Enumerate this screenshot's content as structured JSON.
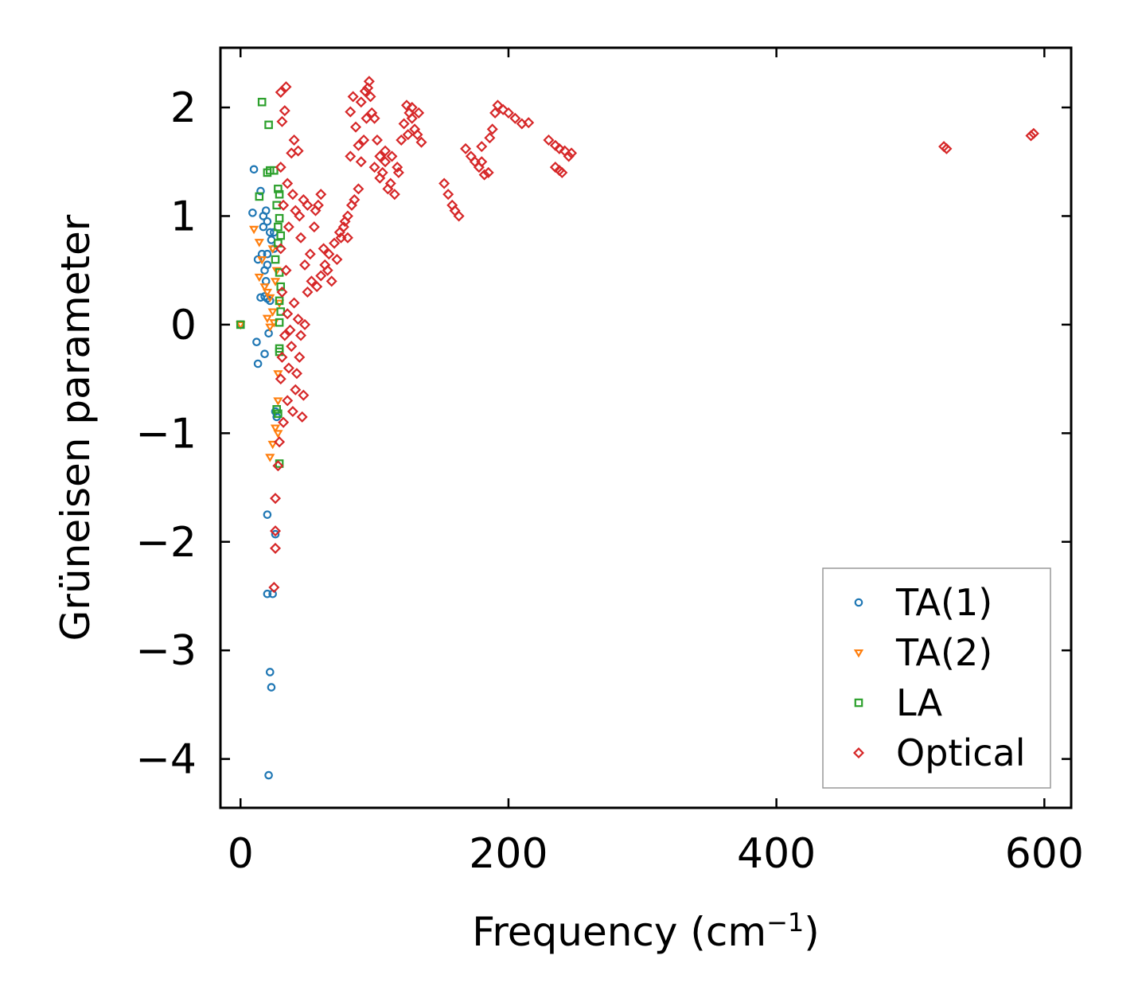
{
  "chart_data": {
    "type": "scatter",
    "xlabel": "Frequency (cm",
    "xlabel_sup": "−1",
    "xlabel_end": ")",
    "ylabel": "Grüneisen parameter",
    "xlim": [
      -15,
      620
    ],
    "ylim": [
      -4.45,
      2.55
    ],
    "xticks": [
      0,
      200,
      400,
      600
    ],
    "xtick_labels": [
      "0",
      "200",
      "400",
      "600"
    ],
    "yticks": [
      2,
      1,
      0,
      -1,
      -2,
      -3,
      -4
    ],
    "ytick_labels": [
      "2",
      "1",
      "0",
      "−1",
      "−2",
      "−3",
      "−4"
    ],
    "legend_position": "lower-right",
    "series": [
      {
        "name": "TA(1)",
        "marker": "circle",
        "color": "#1f77b4",
        "points": [
          [
            0,
            0
          ],
          [
            10,
            1.43
          ],
          [
            9,
            1.03
          ],
          [
            15,
            1.23
          ],
          [
            13,
            0.6
          ],
          [
            17,
            0.9
          ],
          [
            19,
            1.05
          ],
          [
            20,
            0.95
          ],
          [
            16,
            0.65
          ],
          [
            18,
            0.5
          ],
          [
            20,
            0.55
          ],
          [
            22,
            0.85
          ],
          [
            23,
            0.78
          ],
          [
            25,
            0.7
          ],
          [
            15,
            0.25
          ],
          [
            18,
            0.26
          ],
          [
            20,
            0.24
          ],
          [
            22,
            0.22
          ],
          [
            21,
            -0.08
          ],
          [
            12,
            -0.16
          ],
          [
            18,
            -0.27
          ],
          [
            13,
            -0.36
          ],
          [
            20,
            -1.75
          ],
          [
            26,
            -1.93
          ],
          [
            20,
            -2.48
          ],
          [
            24,
            -2.48
          ],
          [
            22,
            -3.2
          ],
          [
            23,
            -3.34
          ],
          [
            21,
            -4.15
          ],
          [
            26,
            -0.8
          ],
          [
            27,
            -0.85
          ],
          [
            25,
            0.85
          ],
          [
            20,
            0.65
          ],
          [
            17,
            1.0
          ],
          [
            19,
            0.4
          ]
        ]
      },
      {
        "name": "TA(2)",
        "marker": "triangle-down",
        "color": "#ff7f0e",
        "points": [
          [
            0,
            0
          ],
          [
            10,
            0.88
          ],
          [
            14,
            0.76
          ],
          [
            16,
            0.6
          ],
          [
            14,
            0.44
          ],
          [
            18,
            0.35
          ],
          [
            20,
            0.3
          ],
          [
            22,
            0.25
          ],
          [
            24,
            0.12
          ],
          [
            20,
            0.06
          ],
          [
            25,
            0.02
          ],
          [
            22,
            -0.02
          ],
          [
            28,
            -0.45
          ],
          [
            28,
            -0.7
          ],
          [
            26,
            -0.95
          ],
          [
            28,
            -1.0
          ],
          [
            24,
            -1.1
          ],
          [
            22,
            -1.22
          ],
          [
            26,
            0.4
          ],
          [
            27,
            0.5
          ],
          [
            29,
            0.2
          ],
          [
            24,
            0.7
          ]
        ]
      },
      {
        "name": "LA",
        "marker": "square",
        "color": "#2ca02c",
        "points": [
          [
            0,
            0
          ],
          [
            16,
            2.05
          ],
          [
            21,
            1.84
          ],
          [
            20,
            1.4
          ],
          [
            22,
            1.42
          ],
          [
            25,
            1.42
          ],
          [
            14,
            1.18
          ],
          [
            28,
            1.25
          ],
          [
            29,
            1.2
          ],
          [
            27,
            1.1
          ],
          [
            29,
            0.98
          ],
          [
            28,
            0.9
          ],
          [
            30,
            0.82
          ],
          [
            28,
            0.75
          ],
          [
            29,
            0.48
          ],
          [
            30,
            0.35
          ],
          [
            29,
            0.22
          ],
          [
            29,
            0.02
          ],
          [
            29,
            -0.22
          ],
          [
            29,
            -0.25
          ],
          [
            27,
            -0.78
          ],
          [
            28,
            -0.82
          ],
          [
            29,
            -1.28
          ],
          [
            26,
            0.6
          ],
          [
            30,
            0.12
          ]
        ]
      },
      {
        "name": "Optical",
        "marker": "diamond",
        "color": "#d62728",
        "points": [
          [
            30,
            2.14
          ],
          [
            34,
            2.19
          ],
          [
            33,
            1.97
          ],
          [
            31,
            1.87
          ],
          [
            40,
            1.7
          ],
          [
            43,
            1.6
          ],
          [
            38,
            1.58
          ],
          [
            30,
            1.45
          ],
          [
            35,
            1.3
          ],
          [
            32,
            1.1
          ],
          [
            36,
            0.9
          ],
          [
            30,
            0.7
          ],
          [
            34,
            0.5
          ],
          [
            31,
            0.3
          ],
          [
            35,
            0.1
          ],
          [
            33,
            -0.1
          ],
          [
            31,
            -0.3
          ],
          [
            30,
            -0.5
          ],
          [
            35,
            -0.7
          ],
          [
            32,
            -0.9
          ],
          [
            29,
            -1.08
          ],
          [
            28,
            -1.3
          ],
          [
            26,
            -1.6
          ],
          [
            26,
            -1.9
          ],
          [
            26,
            -2.06
          ],
          [
            25,
            -2.42
          ],
          [
            37,
            -0.05
          ],
          [
            40,
            0.2
          ],
          [
            44,
            -0.3
          ],
          [
            47,
            -0.65
          ],
          [
            46,
            -0.85
          ],
          [
            42,
            -0.45
          ],
          [
            39,
            1.2
          ],
          [
            41,
            1.05
          ],
          [
            45,
            0.8
          ],
          [
            48,
            0.55
          ],
          [
            52,
            0.65
          ],
          [
            55,
            0.9
          ],
          [
            58,
            1.1
          ],
          [
            60,
            1.2
          ],
          [
            56,
            1.05
          ],
          [
            62,
            0.7
          ],
          [
            65,
            0.5
          ],
          [
            68,
            0.4
          ],
          [
            72,
            0.6
          ],
          [
            75,
            0.8
          ],
          [
            78,
            0.95
          ],
          [
            80,
            1.0
          ],
          [
            83,
            1.1
          ],
          [
            85,
            1.15
          ],
          [
            88,
            1.25
          ],
          [
            90,
            1.5
          ],
          [
            92,
            1.7
          ],
          [
            94,
            1.9
          ],
          [
            96,
            2.24
          ],
          [
            97,
            2.1
          ],
          [
            98,
            1.95
          ],
          [
            84,
            2.1
          ],
          [
            82,
            1.96
          ],
          [
            86,
            1.82
          ],
          [
            88,
            1.65
          ],
          [
            82,
            1.55
          ],
          [
            100,
            1.45
          ],
          [
            104,
            1.35
          ],
          [
            108,
            1.5
          ],
          [
            112,
            1.3
          ],
          [
            115,
            1.2
          ],
          [
            118,
            1.4
          ],
          [
            120,
            1.7
          ],
          [
            122,
            1.85
          ],
          [
            126,
            1.95
          ],
          [
            128,
            1.9
          ],
          [
            130,
            1.8
          ],
          [
            132,
            1.75
          ],
          [
            135,
            1.68
          ],
          [
            124,
            2.02
          ],
          [
            152,
            1.3
          ],
          [
            155,
            1.2
          ],
          [
            158,
            1.1
          ],
          [
            160,
            1.05
          ],
          [
            163,
            1.0
          ],
          [
            168,
            1.62
          ],
          [
            172,
            1.55
          ],
          [
            175,
            1.5
          ],
          [
            178,
            1.45
          ],
          [
            182,
            1.38
          ],
          [
            186,
            1.72
          ],
          [
            188,
            1.8
          ],
          [
            192,
            2.02
          ],
          [
            196,
            1.98
          ],
          [
            200,
            1.95
          ],
          [
            205,
            1.9
          ],
          [
            210,
            1.85
          ],
          [
            230,
            1.7
          ],
          [
            235,
            1.65
          ],
          [
            238,
            1.62
          ],
          [
            242,
            1.6
          ],
          [
            245,
            1.55
          ],
          [
            235,
            1.45
          ],
          [
            238,
            1.42
          ],
          [
            240,
            1.4
          ],
          [
            525,
            1.64
          ],
          [
            527,
            1.62
          ],
          [
            590,
            1.74
          ],
          [
            592,
            1.76
          ],
          [
            50,
            0.3
          ],
          [
            53,
            0.4
          ],
          [
            57,
            0.35
          ],
          [
            60,
            0.45
          ],
          [
            63,
            0.55
          ],
          [
            66,
            0.65
          ],
          [
            70,
            0.75
          ],
          [
            74,
            0.85
          ],
          [
            77,
            0.9
          ],
          [
            80,
            0.8
          ],
          [
            43,
            0.05
          ],
          [
            45,
            -0.1
          ],
          [
            48,
            0.0
          ],
          [
            38,
            -0.2
          ],
          [
            36,
            -0.4
          ],
          [
            41,
            -0.6
          ],
          [
            39,
            -0.8
          ],
          [
            44,
            1.0
          ],
          [
            47,
            1.15
          ],
          [
            50,
            1.1
          ],
          [
            108,
            1.6
          ],
          [
            113,
            1.55
          ],
          [
            117,
            1.45
          ],
          [
            110,
            1.25
          ],
          [
            106,
            1.4
          ],
          [
            125,
            1.75
          ],
          [
            133,
            1.95
          ],
          [
            128,
            2.0
          ],
          [
            190,
            1.95
          ],
          [
            185,
            1.4
          ],
          [
            180,
            1.5
          ],
          [
            215,
            1.86
          ],
          [
            247,
            1.58
          ],
          [
            180,
            1.64
          ],
          [
            90,
            2.05
          ],
          [
            93,
            2.15
          ],
          [
            95,
            2.18
          ],
          [
            100,
            1.9
          ],
          [
            102,
            1.7
          ],
          [
            104,
            1.55
          ]
        ]
      }
    ]
  }
}
